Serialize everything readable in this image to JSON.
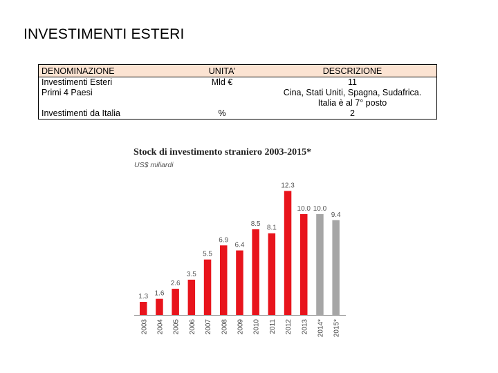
{
  "page": {
    "title": "INVESTIMENTI ESTERI"
  },
  "table": {
    "headers": [
      "DENOMINAZIONE",
      "UNITA’",
      "DESCRIZIONE"
    ],
    "rows": [
      {
        "c1": "Investimenti Esteri",
        "c2": "Mld €",
        "c3": "11"
      },
      {
        "c1": "Primi 4 Paesi",
        "c2": "",
        "c3": "Cina, Stati Uniti, Spagna, Sudafrica."
      },
      {
        "c1": "",
        "c2": "",
        "c3": "Italia è al 7° posto"
      },
      {
        "c1": "Investimenti da Italia",
        "c2": "%",
        "c3": "2"
      }
    ]
  },
  "chart_data": {
    "type": "bar",
    "title": "Stock di investimento straniero 2003-2015*",
    "subtitle": "US$ miliardi",
    "categories": [
      "2003",
      "2004",
      "2005",
      "2006",
      "2007",
      "2008",
      "2009",
      "2010",
      "2011",
      "2012",
      "2013",
      "2014*",
      "2015*"
    ],
    "values": [
      1.3,
      1.6,
      2.6,
      3.5,
      5.5,
      6.9,
      6.4,
      8.5,
      8.1,
      12.3,
      10.0,
      10.0,
      9.4
    ],
    "value_labels": [
      "1.3",
      "1.6",
      "2.6",
      "3.5",
      "5.5",
      "6.9",
      "6.4",
      "8.5",
      "8.1",
      "12.3",
      "10.0",
      "10.0",
      "9.4"
    ],
    "bar_colors": [
      "#e8141c",
      "#e8141c",
      "#e8141c",
      "#e8141c",
      "#e8141c",
      "#e8141c",
      "#e8141c",
      "#e8141c",
      "#e8141c",
      "#e8141c",
      "#e8141c",
      "#a6a6a6",
      "#a6a6a6"
    ],
    "ylim": [
      0,
      14
    ],
    "grid": false,
    "legend": "none"
  }
}
